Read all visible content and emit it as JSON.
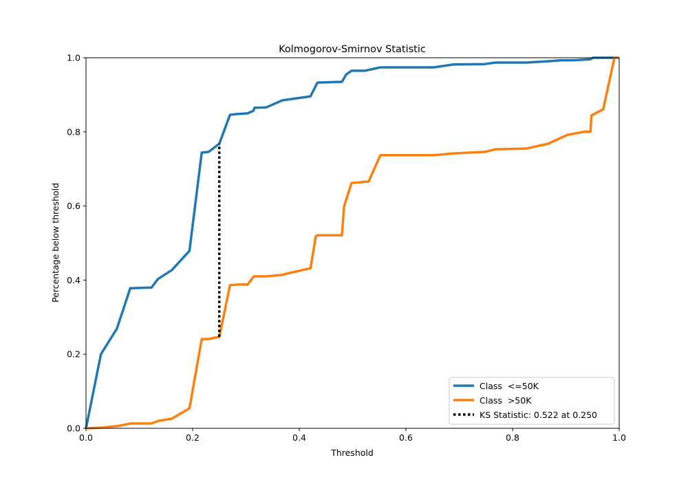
{
  "chart_data": {
    "type": "line",
    "title": "Kolmogorov-Smirnov Statistic",
    "xlabel": "Threshold",
    "ylabel": "Percentage below threshold",
    "xlim": [
      0,
      1
    ],
    "ylim": [
      0,
      1
    ],
    "xticks": [
      "0.0",
      "0.2",
      "0.4",
      "0.6",
      "0.8",
      "1.0"
    ],
    "yticks": [
      "0.0",
      "0.2",
      "0.4",
      "0.6",
      "0.8",
      "1.0"
    ],
    "grid": false,
    "legend_position": "lower-right",
    "series": [
      {
        "name": "Class  <=50K",
        "color": "#1f77b4",
        "x": [
          0,
          0.028,
          0.058,
          0.083,
          0.123,
          0.135,
          0.161,
          0.194,
          0.217,
          0.23,
          0.25,
          0.27,
          0.284,
          0.303,
          0.314,
          0.316,
          0.338,
          0.368,
          0.421,
          0.434,
          0.48,
          0.488,
          0.498,
          0.523,
          0.552,
          0.652,
          0.69,
          0.748,
          0.768,
          0.826,
          0.871,
          0.89,
          0.912,
          0.946,
          0.951,
          1.0
        ],
        "y": [
          0,
          0.2,
          0.269,
          0.378,
          0.38,
          0.403,
          0.427,
          0.479,
          0.744,
          0.746,
          0.768,
          0.846,
          0.848,
          0.85,
          0.857,
          0.865,
          0.866,
          0.885,
          0.896,
          0.933,
          0.935,
          0.955,
          0.965,
          0.965,
          0.974,
          0.974,
          0.982,
          0.983,
          0.987,
          0.987,
          0.991,
          0.993,
          0.993,
          0.996,
          1.0,
          1.0
        ]
      },
      {
        "name": "Class  >50K",
        "color": "#ff7f0e",
        "x": [
          0,
          0.032,
          0.058,
          0.084,
          0.123,
          0.135,
          0.161,
          0.194,
          0.217,
          0.23,
          0.25,
          0.27,
          0.284,
          0.303,
          0.315,
          0.338,
          0.368,
          0.381,
          0.421,
          0.431,
          0.434,
          0.48,
          0.484,
          0.498,
          0.53,
          0.552,
          0.652,
          0.69,
          0.748,
          0.768,
          0.826,
          0.867,
          0.903,
          0.933,
          0.946,
          0.948,
          0.97,
          0.991,
          1.0
        ],
        "y": [
          0,
          0.002,
          0.006,
          0.013,
          0.013,
          0.02,
          0.026,
          0.054,
          0.241,
          0.241,
          0.247,
          0.386,
          0.388,
          0.388,
          0.41,
          0.41,
          0.414,
          0.419,
          0.432,
          0.518,
          0.521,
          0.521,
          0.599,
          0.662,
          0.666,
          0.737,
          0.737,
          0.742,
          0.746,
          0.753,
          0.755,
          0.768,
          0.792,
          0.8,
          0.8,
          0.844,
          0.861,
          1.0,
          1.0
        ]
      }
    ],
    "ks_line": {
      "name": "KS Statistic: 0.522 at 0.250",
      "color": "#000000",
      "x": 0.25,
      "y_from": 0.247,
      "y_to": 0.768
    }
  }
}
